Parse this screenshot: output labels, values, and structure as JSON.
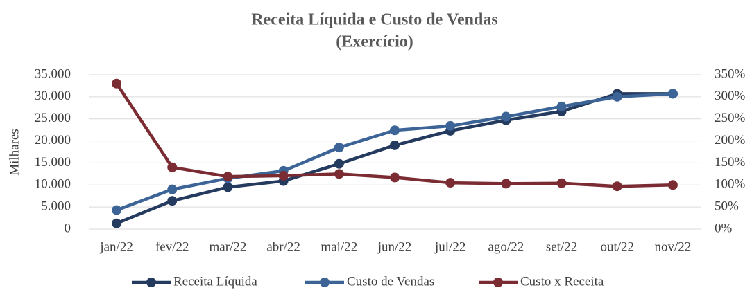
{
  "chart_data": {
    "type": "line",
    "title_lines": [
      "Receita Líquida e Custo de Vendas",
      "(Exercício)"
    ],
    "ylabel": "Milhares",
    "categories": [
      "jan/22",
      "fev/22",
      "mar/22",
      "abr/22",
      "mai/22",
      "jun/22",
      "jul/22",
      "ago/22",
      "set/22",
      "out/22",
      "nov/22"
    ],
    "series": [
      {
        "name": "Receita Líquida",
        "color": "#243a5e",
        "values": [
          1300,
          6400,
          9500,
          10900,
          14800,
          19000,
          22300,
          24700,
          26700,
          30700,
          30700
        ]
      },
      {
        "name": "Custo de Vendas",
        "color": "#3c6496",
        "values": [
          4300,
          9000,
          11500,
          13200,
          18500,
          22400,
          23400,
          25500,
          27800,
          30000,
          30700
        ]
      },
      {
        "name": "Custo x Receita",
        "color": "#7b2c33",
        "axis": "y2",
        "values": [
          330,
          140,
          119,
          121,
          125,
          117,
          105,
          103,
          104,
          97,
          100
        ]
      }
    ],
    "ylim": [
      0,
      35000
    ],
    "yticks": [
      0,
      {
        "value": 5000,
        "label": "5.000"
      },
      {
        "value": 10000,
        "label": "10.000"
      },
      {
        "value": 15000,
        "label": "15.000"
      },
      {
        "value": 20000,
        "label": "20.000"
      },
      {
        "value": 25000,
        "label": "25.000"
      },
      {
        "value": 30000,
        "label": "30.000"
      },
      {
        "value": 35000,
        "label": "35.000"
      }
    ],
    "y2lim": [
      0,
      350
    ],
    "y2ticks": [
      {
        "value": 0,
        "label": "0%"
      },
      {
        "value": 50,
        "label": "50%"
      },
      {
        "value": 100,
        "label": "100%"
      },
      {
        "value": 150,
        "label": "150%"
      },
      {
        "value": 200,
        "label": "200%"
      },
      {
        "value": 250,
        "label": "250%"
      },
      {
        "value": 300,
        "label": "300%"
      },
      {
        "value": 350,
        "label": "350%"
      }
    ],
    "grid": true,
    "legend": "bottom"
  }
}
